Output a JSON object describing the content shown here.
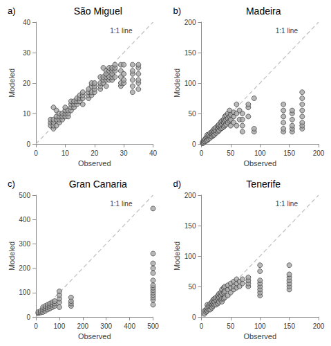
{
  "chart_data": [
    {
      "type": "scatter",
      "title": "São Miguel",
      "subtitle": "a)",
      "x_label": "Observed",
      "y_label": "Modeled",
      "annotations": [
        "1:1 line"
      ],
      "grid": false,
      "xlim": [
        0,
        40
      ],
      "xticks": [
        0,
        10,
        20,
        30,
        40
      ],
      "ylim": [
        0,
        40
      ],
      "yticks": [
        0,
        10,
        20,
        30,
        40
      ],
      "series": [
        {
          "type": "scatter",
          "marker": "circle",
          "color": "#a6a6a6",
          "x": [
            5,
            5,
            5,
            6,
            6,
            6,
            6,
            6,
            7,
            7,
            7,
            7,
            8,
            8,
            8,
            8,
            9,
            9,
            9,
            10,
            10,
            10,
            10,
            11,
            11,
            11,
            12,
            12,
            12,
            12,
            13,
            13,
            13,
            14,
            14,
            14,
            15,
            15,
            15,
            16,
            16,
            16,
            16,
            18,
            18,
            18,
            18,
            19,
            19,
            19,
            19,
            20,
            20,
            20,
            20,
            22,
            22,
            22,
            22,
            23,
            23,
            23,
            23,
            24,
            24,
            24,
            24,
            24,
            25,
            25,
            25,
            25,
            26,
            26,
            26,
            26,
            26,
            27,
            27,
            27,
            27,
            29,
            29,
            29,
            29,
            29,
            30,
            30,
            30,
            30,
            33,
            33,
            33,
            33,
            33,
            33,
            35,
            35,
            35,
            35,
            35,
            35
          ],
          "values": [
            6,
            7,
            8,
            5,
            6,
            7,
            8,
            12,
            6,
            8,
            9,
            11,
            7,
            8,
            9,
            10,
            8,
            9,
            10,
            9,
            10,
            11,
            12,
            9,
            10,
            11,
            11,
            12,
            13,
            14,
            12,
            13,
            14,
            13,
            14,
            15,
            14,
            15,
            16,
            13,
            15,
            16,
            17,
            15,
            16,
            17,
            18,
            16,
            17,
            19,
            20,
            17,
            18,
            19,
            20,
            18,
            19,
            20,
            22,
            20,
            21,
            22,
            25,
            19,
            21,
            22,
            23,
            24,
            21,
            22,
            24,
            25,
            21,
            22,
            23,
            24,
            25,
            22,
            24,
            25,
            26,
            19,
            20,
            22,
            24,
            26,
            20,
            21,
            23,
            26,
            17,
            19,
            21,
            23,
            24,
            26,
            18,
            20,
            21,
            23,
            25,
            26
          ]
        },
        {
          "type": "line",
          "line_style": "dashed",
          "color": "#bfbfbf",
          "x": [
            0,
            40
          ],
          "values": [
            0,
            40
          ]
        }
      ]
    },
    {
      "type": "scatter",
      "title": "Madeira",
      "subtitle": "b)",
      "x_label": "Observed",
      "y_label": "Modeled",
      "annotations": [
        "1:1 line"
      ],
      "grid": false,
      "xlim": [
        0,
        200
      ],
      "xticks": [
        0,
        50,
        100,
        150,
        200
      ],
      "ylim": [
        0,
        200
      ],
      "yticks": [
        0,
        50,
        100,
        150,
        200
      ],
      "series": [
        {
          "type": "scatter",
          "marker": "circle",
          "color": "#a6a6a6",
          "x": [
            2,
            2,
            4,
            4,
            6,
            6,
            8,
            8,
            10,
            10,
            10,
            12,
            12,
            15,
            15,
            15,
            18,
            18,
            18,
            20,
            20,
            20,
            22,
            22,
            22,
            25,
            25,
            25,
            28,
            28,
            28,
            30,
            30,
            30,
            33,
            33,
            33,
            35,
            35,
            35,
            38,
            38,
            38,
            40,
            40,
            40,
            42,
            42,
            42,
            45,
            45,
            45,
            48,
            48,
            48,
            50,
            50,
            50,
            55,
            55,
            55,
            60,
            60,
            60,
            65,
            65,
            70,
            70,
            70,
            70,
            80,
            80,
            80,
            90,
            90,
            90,
            140,
            140,
            140,
            140,
            140,
            140,
            155,
            155,
            155,
            155,
            155,
            155,
            172,
            172,
            172,
            172,
            172,
            172,
            172,
            172
          ],
          "values": [
            1,
            3,
            2,
            5,
            4,
            8,
            5,
            10,
            6,
            12,
            15,
            8,
            14,
            10,
            13,
            18,
            12,
            16,
            20,
            14,
            18,
            22,
            15,
            20,
            25,
            18,
            22,
            27,
            20,
            25,
            30,
            22,
            28,
            32,
            25,
            30,
            36,
            26,
            32,
            38,
            28,
            35,
            40,
            30,
            38,
            45,
            32,
            40,
            47,
            35,
            42,
            50,
            38,
            45,
            55,
            30,
            40,
            48,
            35,
            45,
            52,
            30,
            50,
            65,
            40,
            55,
            20,
            30,
            40,
            50,
            45,
            60,
            65,
            20,
            25,
            75,
            20,
            25,
            35,
            45,
            55,
            65,
            20,
            25,
            30,
            40,
            50,
            55,
            25,
            30,
            35,
            45,
            55,
            65,
            75,
            85
          ]
        },
        {
          "type": "line",
          "line_style": "dashed",
          "color": "#bfbfbf",
          "x": [
            0,
            200
          ],
          "values": [
            0,
            200
          ]
        }
      ]
    },
    {
      "type": "scatter",
      "title": "Gran Canaria",
      "subtitle": "c)",
      "x_label": "Observed",
      "y_label": "Modeled",
      "annotations": [
        "1:1 line"
      ],
      "grid": false,
      "xlim": [
        0,
        500
      ],
      "xticks": [
        0,
        100,
        200,
        300,
        400,
        500
      ],
      "ylim": [
        0,
        500
      ],
      "yticks": [
        0,
        100,
        200,
        300,
        400,
        500
      ],
      "series": [
        {
          "type": "scatter",
          "marker": "circle",
          "color": "#a6a6a6",
          "x": [
            10,
            10,
            20,
            20,
            30,
            30,
            30,
            40,
            40,
            40,
            50,
            50,
            50,
            60,
            60,
            60,
            70,
            70,
            70,
            80,
            80,
            80,
            100,
            100,
            100,
            100,
            100,
            150,
            150,
            150,
            150,
            500,
            500,
            500,
            500,
            500,
            500,
            500,
            500,
            500,
            500,
            500,
            500,
            500,
            500
          ],
          "values": [
            15,
            20,
            18,
            25,
            20,
            30,
            40,
            25,
            35,
            45,
            30,
            40,
            50,
            35,
            45,
            55,
            40,
            50,
            60,
            45,
            55,
            65,
            40,
            60,
            75,
            90,
            105,
            45,
            55,
            65,
            80,
            50,
            70,
            80,
            90,
            100,
            110,
            120,
            130,
            150,
            180,
            200,
            220,
            260,
            445
          ]
        },
        {
          "type": "line",
          "line_style": "dashed",
          "color": "#bfbfbf",
          "x": [
            0,
            500
          ],
          "values": [
            0,
            500
          ]
        }
      ]
    },
    {
      "type": "scatter",
      "title": "Tenerife",
      "subtitle": "d)",
      "x_label": "Observed",
      "y_label": "Modeled",
      "annotations": [
        "1:1 line"
      ],
      "grid": false,
      "xlim": [
        0,
        200
      ],
      "xticks": [
        0,
        50,
        100,
        150,
        200
      ],
      "ylim": [
        0,
        200
      ],
      "yticks": [
        0,
        50,
        100,
        150,
        200
      ],
      "series": [
        {
          "type": "scatter",
          "marker": "circle",
          "color": "#a6a6a6",
          "x": [
            5,
            5,
            8,
            8,
            10,
            10,
            10,
            12,
            12,
            15,
            15,
            15,
            18,
            18,
            18,
            20,
            20,
            20,
            22,
            22,
            22,
            25,
            25,
            25,
            28,
            28,
            28,
            30,
            30,
            30,
            33,
            33,
            33,
            35,
            35,
            35,
            35,
            38,
            38,
            38,
            40,
            40,
            40,
            45,
            45,
            45,
            50,
            50,
            50,
            55,
            55,
            55,
            60,
            60,
            60,
            65,
            65,
            70,
            70,
            80,
            80,
            80,
            80,
            100,
            100,
            100,
            100,
            100,
            100,
            100,
            100,
            150,
            150,
            150,
            150,
            150,
            150,
            150
          ],
          "values": [
            5,
            10,
            8,
            12,
            10,
            15,
            20,
            12,
            18,
            12,
            18,
            22,
            15,
            20,
            25,
            18,
            22,
            28,
            20,
            25,
            30,
            20,
            28,
            32,
            22,
            30,
            35,
            25,
            32,
            38,
            28,
            35,
            40,
            25,
            30,
            38,
            45,
            30,
            40,
            48,
            32,
            42,
            50,
            35,
            45,
            52,
            40,
            48,
            55,
            45,
            50,
            58,
            48,
            55,
            62,
            50,
            58,
            55,
            62,
            50,
            55,
            60,
            65,
            35,
            40,
            45,
            50,
            55,
            60,
            75,
            85,
            45,
            50,
            55,
            60,
            65,
            70,
            85
          ]
        },
        {
          "type": "line",
          "line_style": "dashed",
          "color": "#bfbfbf",
          "x": [
            0,
            200
          ],
          "values": [
            0,
            200
          ]
        }
      ]
    }
  ]
}
